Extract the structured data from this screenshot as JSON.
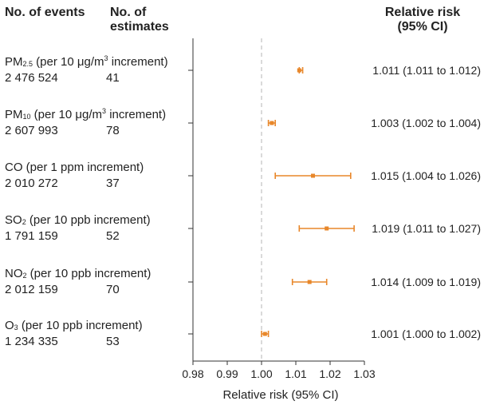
{
  "header": {
    "events_label": "No. of events",
    "estimates_label_line1": "No. of",
    "estimates_label_line2": "estimates",
    "rr_label_line1": "Relative risk",
    "rr_label_line2": "(95% CI)"
  },
  "rows": [
    {
      "pollutant": "PM",
      "sub": "2.5",
      "increment_before": " (per 10 μg/m",
      "sup": "3",
      "increment_after": " increment)",
      "events": "2 476 524",
      "estimates": "41",
      "ci_text": "1.011 (1.011 to 1.012)"
    },
    {
      "pollutant": "PM",
      "sub": "10",
      "increment_before": " (per 10 μg/m",
      "sup": "3",
      "increment_after": " increment)",
      "events": "2 607 993",
      "estimates": "78",
      "ci_text": "1.003 (1.002 to 1.004)"
    },
    {
      "pollutant": "CO",
      "sub": "",
      "increment_before": " (per 1 ppm increment)",
      "sup": "",
      "increment_after": "",
      "events": "2 010 272",
      "estimates": "37",
      "ci_text": "1.015 (1.004 to 1.026)"
    },
    {
      "pollutant": "SO",
      "sub": "2",
      "increment_before": " (per 10 ppb increment)",
      "sup": "",
      "increment_after": "",
      "events": "1 791 159",
      "estimates": "52",
      "ci_text": "1.019 (1.011 to 1.027)"
    },
    {
      "pollutant": "NO",
      "sub": "2",
      "increment_before": " (per 10 ppb increment)",
      "sup": "",
      "increment_after": "",
      "events": "2 012 159",
      "estimates": "70",
      "ci_text": "1.014 (1.009 to 1.019)"
    },
    {
      "pollutant": "O",
      "sub": "3",
      "increment_before": " (per 10 ppb increment)",
      "sup": "",
      "increment_after": "",
      "events": "1 234 335",
      "estimates": "53",
      "ci_text": "1.001 (1.000 to 1.002)"
    }
  ],
  "chart_data": {
    "type": "forest",
    "xlabel": "Relative risk (95% CI)",
    "xlim": [
      0.98,
      1.03
    ],
    "xticks": [
      0.98,
      0.99,
      1.0,
      1.01,
      1.02,
      1.03
    ],
    "xtick_labels": [
      "0.98",
      "0.99",
      "1.00",
      "1.01",
      "1.02",
      "1.03"
    ],
    "reference_line": 1.0,
    "marker_color": "#e8872a",
    "categories": [
      "PM2.5",
      "PM10",
      "CO",
      "SO2",
      "NO2",
      "O3"
    ],
    "estimates": [
      1.011,
      1.003,
      1.015,
      1.019,
      1.014,
      1.001
    ],
    "lower": [
      1.011,
      1.002,
      1.004,
      1.011,
      1.009,
      1.0
    ],
    "upper": [
      1.012,
      1.004,
      1.026,
      1.027,
      1.019,
      1.002
    ]
  }
}
